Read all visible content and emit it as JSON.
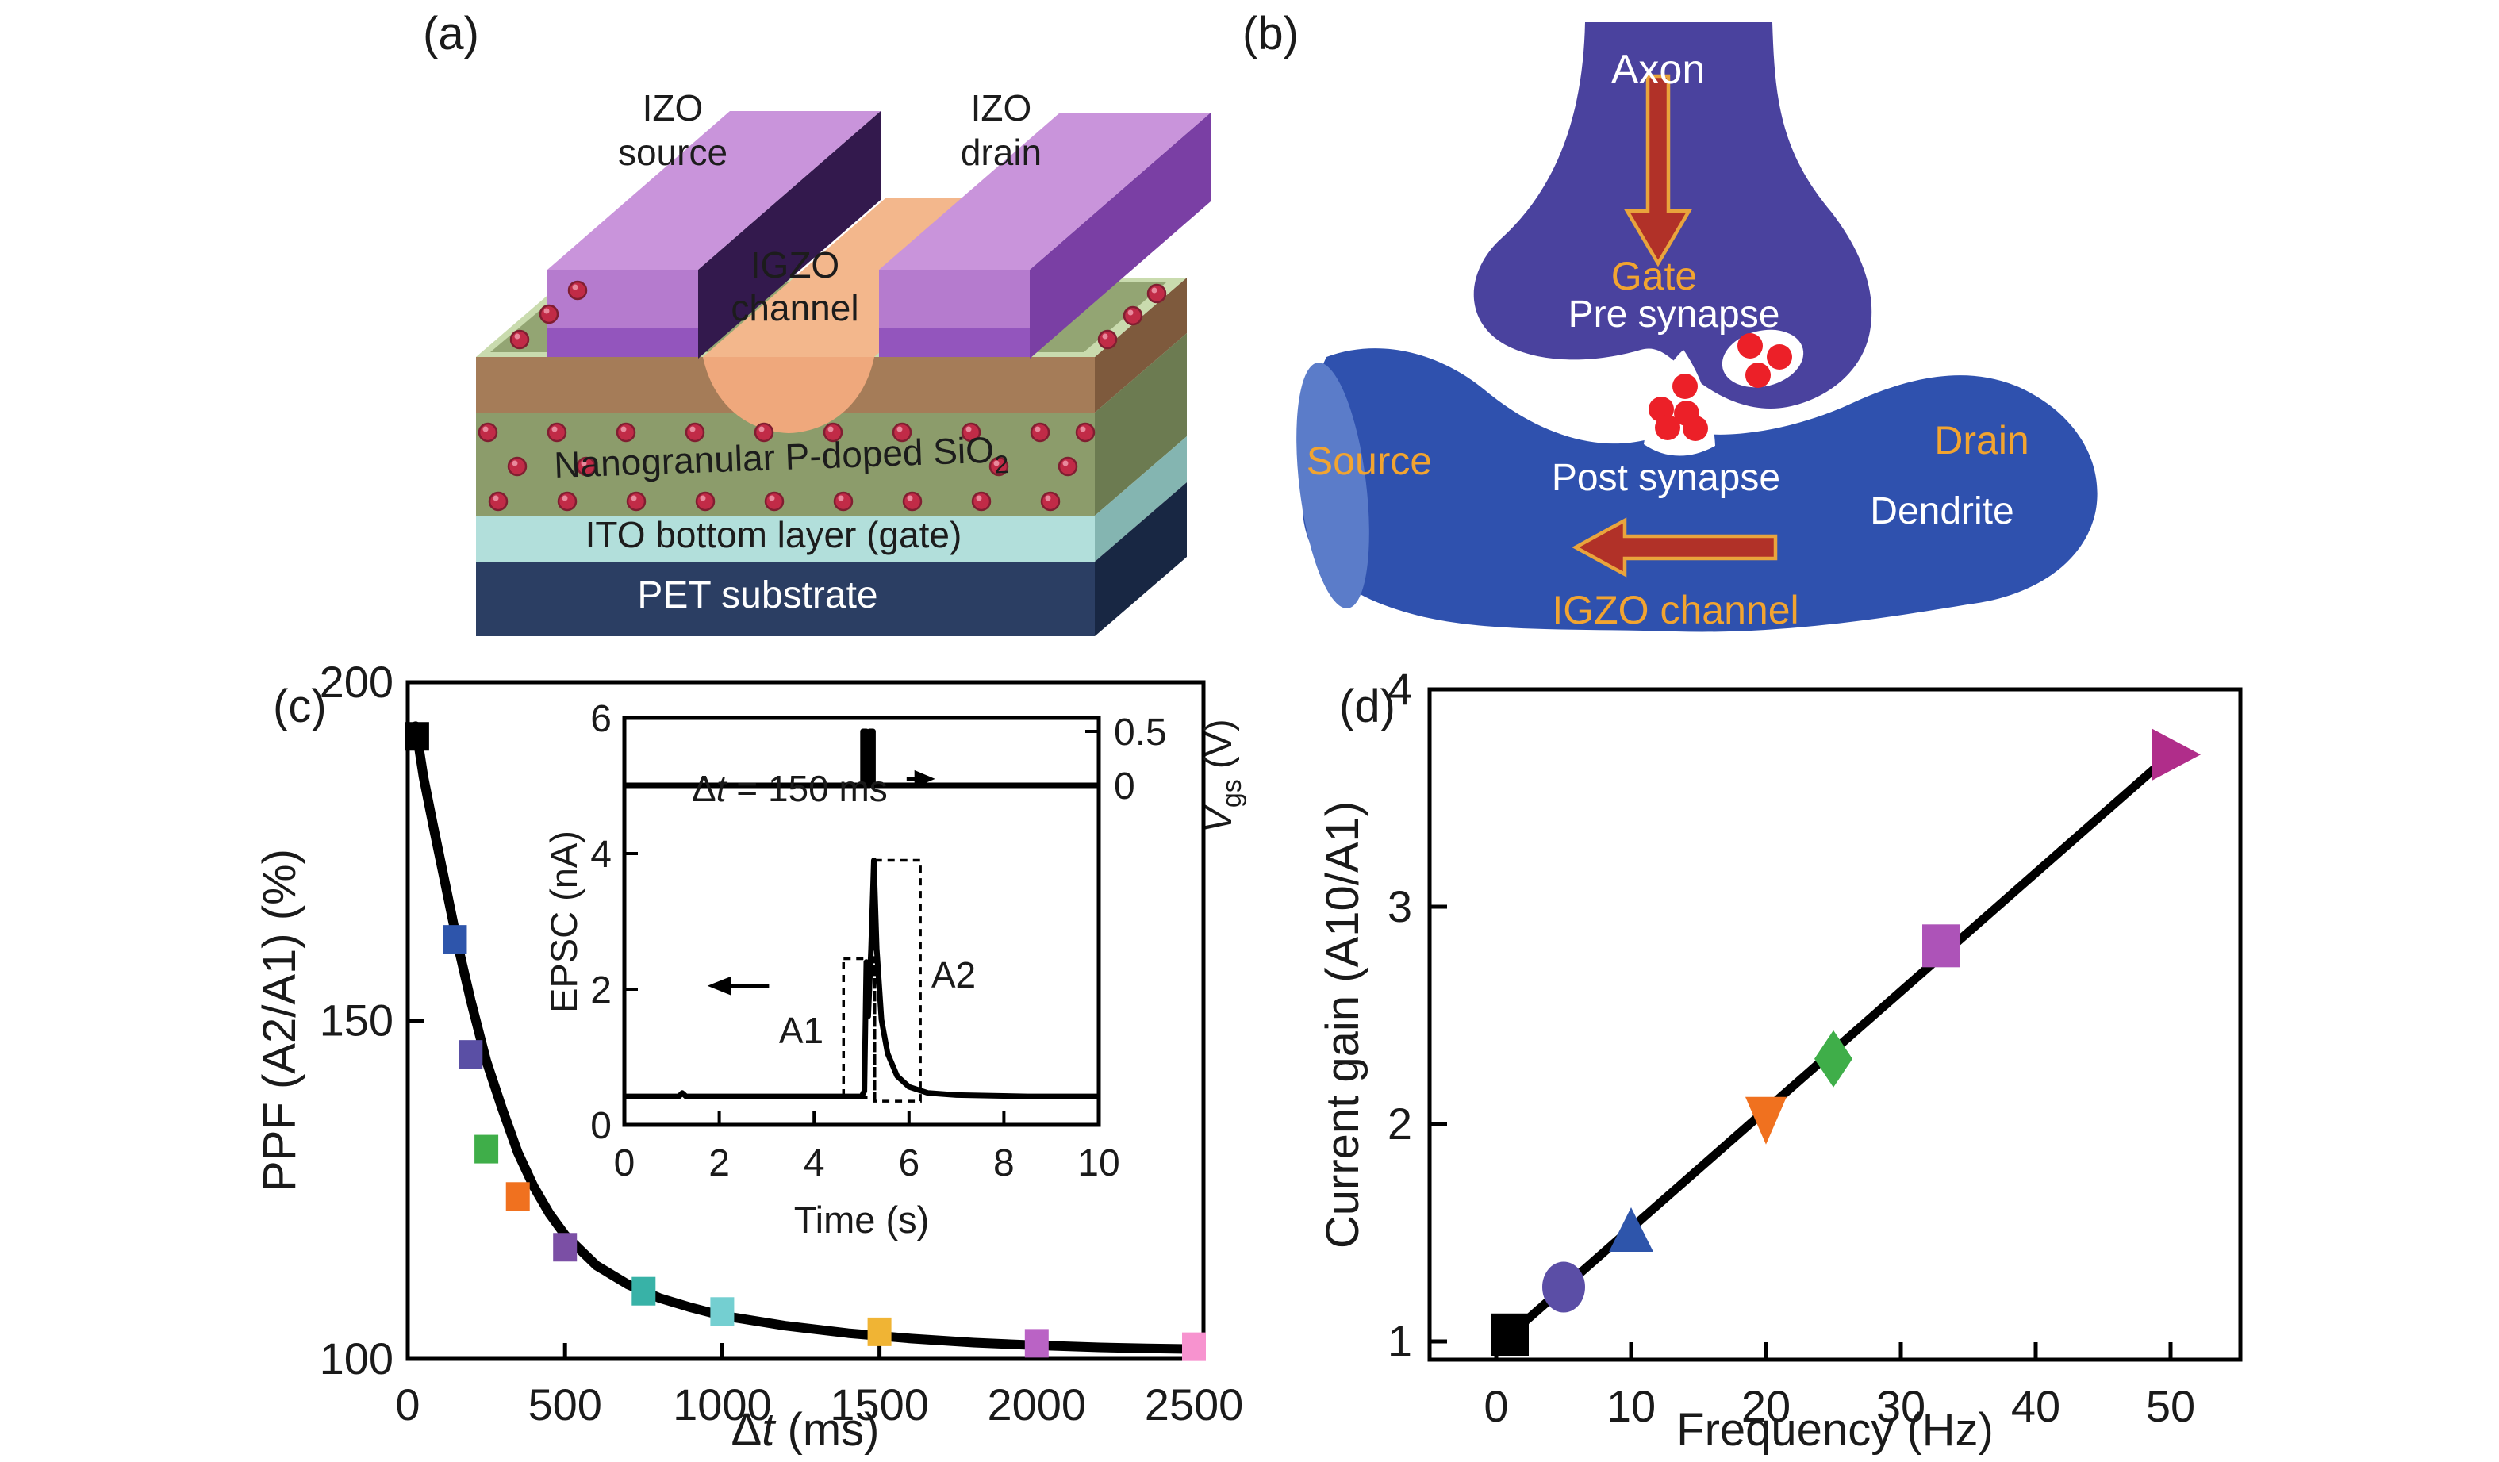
{
  "panel_a": {
    "label": "(a)",
    "izo_source_l1": "IZO",
    "izo_source_l2": "source",
    "izo_drain_l1": "IZO",
    "izo_drain_l2": "drain",
    "igzo_channel_l1": "IGZO",
    "igzo_channel_l2": "channel",
    "sio2_label": "Nanogranular P-doped SiO",
    "sio2_sub": "2",
    "ito_label": "ITO bottom layer (gate)",
    "pet_label": "PET substrate"
  },
  "panel_b": {
    "label": "(b)",
    "axon": "Axon",
    "gate": "Gate",
    "pre_synapse": "Pre synapse",
    "source": "Source",
    "drain": "Drain",
    "post_synapse": "Post synapse",
    "dendrite": "Dendrite",
    "igzo_channel": "IGZO channel"
  },
  "panel_c": {
    "label": "(c)",
    "ylabel": "PPF (A2/A1) (%)",
    "xlabel_delta": "Δ",
    "xlabel_t": "t",
    "xlabel_rest": " (ms)"
  },
  "inset": {
    "ylabel": "EPSC (nA)",
    "xlabel": "Time (s)",
    "right_label_v": "V",
    "right_label_sub": "gs",
    "right_label_rest": " (V)",
    "ann_delta": "Δ",
    "ann_t": "t",
    "ann_rest": " = 150 ms",
    "a1": "A1",
    "a2": "A2"
  },
  "panel_d": {
    "label": "(d)",
    "ylabel": "Current gain (A10/A1)",
    "xlabel": "Frequency (Hz)"
  },
  "colors": {
    "accent_orange_text": "#f2a430",
    "axon_purple": "#4a429e",
    "dendrite_blue": "#2f51ae",
    "vesicle_red": "#ec2028",
    "arrow_red": "#b13128",
    "arrow_outline": "#e9a43c"
  },
  "chart_data": [
    {
      "id": "ppf",
      "type": "scatter",
      "title": "",
      "xlabel": "Δt (ms)",
      "ylabel": "PPF (A2/A1) (%)",
      "xlim": [
        0,
        2530
      ],
      "ylim": [
        100,
        200
      ],
      "xticks": [
        0,
        500,
        1000,
        1500,
        2000,
        2500
      ],
      "yticks": [
        100,
        150,
        200
      ],
      "grid": false,
      "points": [
        {
          "x": 30,
          "y": 192,
          "color": "#000000"
        },
        {
          "x": 150,
          "y": 162,
          "color": "#2e55ab"
        },
        {
          "x": 200,
          "y": 145,
          "color": "#5a4fa5"
        },
        {
          "x": 250,
          "y": 131,
          "color": "#3fae49"
        },
        {
          "x": 350,
          "y": 124,
          "color": "#f0711f"
        },
        {
          "x": 500,
          "y": 116.5,
          "color": "#7b4fa5"
        },
        {
          "x": 750,
          "y": 110,
          "color": "#38b2a7"
        },
        {
          "x": 1000,
          "y": 107,
          "color": "#74cfd1"
        },
        {
          "x": 1500,
          "y": 104,
          "color": "#f0b434"
        },
        {
          "x": 2000,
          "y": 102.3,
          "color": "#ba63c5"
        },
        {
          "x": 2500,
          "y": 101.8,
          "color": "#f793cf"
        }
      ],
      "fit_curve": [
        [
          25,
          193.5
        ],
        [
          50,
          186
        ],
        [
          80,
          179
        ],
        [
          120,
          170
        ],
        [
          160,
          161
        ],
        [
          200,
          153
        ],
        [
          250,
          144
        ],
        [
          300,
          137
        ],
        [
          350,
          130.5
        ],
        [
          400,
          125.5
        ],
        [
          450,
          121.5
        ],
        [
          500,
          118.3
        ],
        [
          600,
          113.8
        ],
        [
          700,
          111
        ],
        [
          800,
          109
        ],
        [
          900,
          107.6
        ],
        [
          1000,
          106.4
        ],
        [
          1200,
          104.9
        ],
        [
          1400,
          103.8
        ],
        [
          1600,
          103
        ],
        [
          1800,
          102.4
        ],
        [
          2000,
          102
        ],
        [
          2200,
          101.7
        ],
        [
          2350,
          101.55
        ],
        [
          2500,
          101.45
        ]
      ]
    },
    {
      "id": "epsc",
      "type": "line",
      "xlabel": "Time (s)",
      "ylabel_left": "EPSC (nA)",
      "ylabel_right": "Vgs (V)",
      "annotation": "Δt = 150 ms",
      "xlim": [
        0,
        10
      ],
      "ylim_left": [
        0,
        6
      ],
      "xticks": [
        0,
        2,
        4,
        6,
        8,
        10
      ],
      "yticks_left": [
        0,
        2,
        4,
        6
      ],
      "yticks_right": [
        0.5,
        0
      ],
      "epsc_trace": [
        [
          0,
          0.42
        ],
        [
          1.15,
          0.42
        ],
        [
          1.22,
          0.47
        ],
        [
          1.3,
          0.42
        ],
        [
          5.0,
          0.42
        ],
        [
          5.06,
          0.5
        ],
        [
          5.1,
          2.4
        ],
        [
          5.14,
          1.6
        ],
        [
          5.2,
          2.6
        ],
        [
          5.26,
          3.9
        ],
        [
          5.32,
          2.6
        ],
        [
          5.42,
          1.55
        ],
        [
          5.55,
          1.05
        ],
        [
          5.75,
          0.72
        ],
        [
          6.0,
          0.56
        ],
        [
          6.4,
          0.47
        ],
        [
          7.0,
          0.44
        ],
        [
          8.5,
          0.42
        ],
        [
          10,
          0.42
        ]
      ],
      "vgs_trace": [
        [
          0,
          0
        ],
        [
          5.03,
          0
        ],
        [
          5.03,
          0.5
        ],
        [
          5.1,
          0.5
        ],
        [
          5.1,
          0
        ],
        [
          5.17,
          0
        ],
        [
          5.17,
          0.5
        ],
        [
          5.24,
          0.5
        ],
        [
          5.24,
          0
        ],
        [
          10,
          0
        ]
      ],
      "box_a1": {
        "t1": 4.62,
        "t2": 5.28,
        "peak": 2.45,
        "base": 0.4
      },
      "box_a2": {
        "t1": 5.28,
        "t2": 6.24,
        "peak": 3.9,
        "base": 0.35
      },
      "arrow_left": {
        "x1": 3.05,
        "x2": 1.75,
        "y_nA": 2.05
      },
      "arrow_right": {
        "x1": 5.95,
        "x2": 6.55,
        "y_V": 0.06
      }
    },
    {
      "id": "gain",
      "type": "scatter",
      "xlabel": "Frequency (Hz)",
      "ylabel": "Current gain (A10/A1)",
      "xlim": [
        -5,
        55
      ],
      "ylim": [
        0.9,
        4
      ],
      "xticks": [
        0,
        10,
        20,
        30,
        40,
        50
      ],
      "yticks": [
        1,
        2,
        3,
        4
      ],
      "grid": false,
      "trend": [
        [
          1,
          1.03
        ],
        [
          50,
          3.7
        ]
      ],
      "points": [
        {
          "x": 1,
          "y": 1.03,
          "marker": "square",
          "color": "#000000"
        },
        {
          "x": 5,
          "y": 1.25,
          "marker": "circle",
          "color": "#5b4ea6"
        },
        {
          "x": 10,
          "y": 1.5,
          "marker": "triangle-up",
          "color": "#2e55ab"
        },
        {
          "x": 20,
          "y": 2.03,
          "marker": "triangle-down",
          "color": "#f0711f"
        },
        {
          "x": 25,
          "y": 2.3,
          "marker": "diamond",
          "color": "#3fae49"
        },
        {
          "x": 33,
          "y": 2.82,
          "marker": "square",
          "color": "#ad53b8"
        },
        {
          "x": 50,
          "y": 3.7,
          "marker": "triangle-right",
          "color": "#b02d8a"
        }
      ]
    }
  ]
}
